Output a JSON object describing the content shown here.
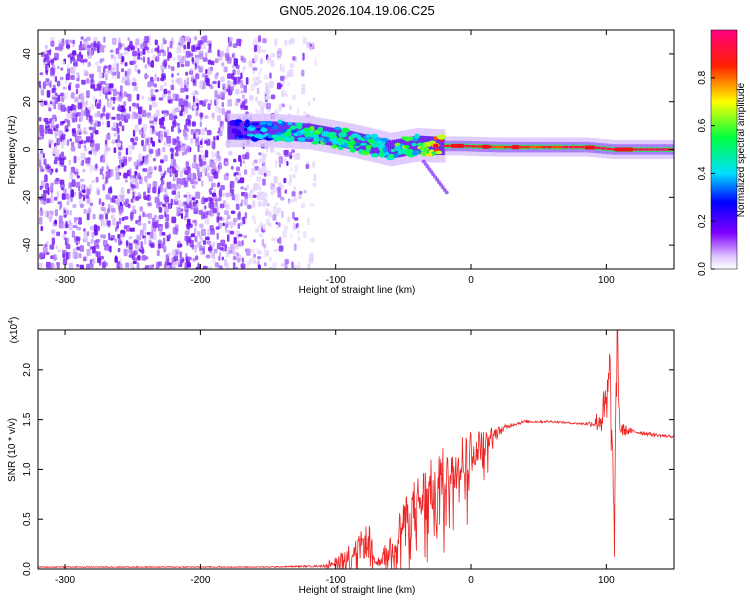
{
  "title": "GN05.2026.104.19.06.C25",
  "chart_data": [
    {
      "type": "heatmap",
      "xlabel": "Height of straight line (km)",
      "ylabel": "Frequency (Hz)",
      "xlim": [
        -320,
        150
      ],
      "ylim": [
        -50,
        50
      ],
      "xticks": [
        -300,
        -200,
        -100,
        0,
        100
      ],
      "yticks": [
        -40,
        -20,
        0,
        20,
        40
      ],
      "colorbar": {
        "label": "Normalized spectral amplitude",
        "range": [
          0,
          1
        ],
        "ticks": [
          "0.0",
          "0.2",
          "0.4",
          "0.6",
          "0.8"
        ],
        "colormap": [
          "#ffffff",
          "#e0c8ff",
          "#8000ff",
          "#0000ff",
          "#00e0ff",
          "#00ff40",
          "#ffff00",
          "#ff2000",
          "#ff0080"
        ]
      },
      "features": {
        "noise_region": {
          "x": [
            -320,
            -115
          ],
          "y": [
            -50,
            48
          ],
          "amplitude": 0.2
        },
        "trace": [
          {
            "x": -175,
            "y": 8,
            "amplitude": 0.3
          },
          {
            "x": -150,
            "y": 8,
            "amplitude": 0.45
          },
          {
            "x": -120,
            "y": 7,
            "amplitude": 0.55
          },
          {
            "x": -90,
            "y": 4,
            "amplitude": 0.55
          },
          {
            "x": -60,
            "y": 0,
            "amplitude": 0.55
          },
          {
            "x": -40,
            "y": 2,
            "amplitude": 0.6
          },
          {
            "x": -25,
            "y": 1.5,
            "amplitude": 0.85
          },
          {
            "x": -10,
            "y": 1.5,
            "amplitude": 0.9
          },
          {
            "x": 20,
            "y": 1,
            "amplitude": 0.85
          },
          {
            "x": 50,
            "y": 1,
            "amplitude": 0.85
          },
          {
            "x": 85,
            "y": 1,
            "amplitude": 0.9
          },
          {
            "x": 105,
            "y": 0,
            "amplitude": 0.95
          },
          {
            "x": 150,
            "y": 0,
            "amplitude": 0.95
          }
        ],
        "tail": [
          {
            "x": -35,
            "y": -5
          },
          {
            "x": -18,
            "y": -18
          }
        ]
      }
    },
    {
      "type": "line",
      "xlabel": "Height of straight line (km)",
      "ylabel": "SNR (10 * v/v)",
      "yscale_label": "(x10^4)",
      "yscale_base": "(x10",
      "yscale_exp": "4",
      "xlim": [
        -320,
        150
      ],
      "ylim": [
        0,
        2.4
      ],
      "xticks": [
        -300,
        -200,
        -100,
        0,
        100
      ],
      "yticks": [
        "0.0",
        "0.5",
        "1.0",
        "1.5",
        "2.0"
      ],
      "color": "#ee2222",
      "series": [
        {
          "x": [
            -320,
            -150,
            -110,
            -100,
            -90,
            -80,
            -75,
            -72,
            -70,
            -60,
            -50,
            -40,
            -30,
            -20,
            -10,
            0,
            10,
            20,
            30,
            40,
            60,
            80,
            90,
            95,
            100,
            103,
            106,
            108,
            110,
            120,
            130,
            140,
            150
          ],
          "y": [
            0.02,
            0.02,
            0.03,
            0.08,
            0.15,
            0.25,
            0.3,
            0.12,
            0.05,
            0.2,
            0.45,
            0.65,
            0.8,
            0.95,
            1.1,
            1.2,
            1.28,
            1.38,
            1.45,
            1.48,
            1.48,
            1.46,
            1.46,
            1.5,
            1.6,
            1.9,
            0.3,
            2.4,
            1.4,
            1.38,
            1.36,
            1.34,
            1.33
          ],
          "noise": [
            0.005,
            0.005,
            0.01,
            0.05,
            0.1,
            0.15,
            0.2,
            0.05,
            0.03,
            0.15,
            0.25,
            0.3,
            0.3,
            0.28,
            0.25,
            0.2,
            0.12,
            0.05,
            0.02,
            0.015,
            0.01,
            0.01,
            0.03,
            0.15,
            0.3,
            0.5,
            0.2,
            0.4,
            0.08,
            0.02,
            0.02,
            0.015,
            0.015
          ]
        }
      ]
    }
  ]
}
